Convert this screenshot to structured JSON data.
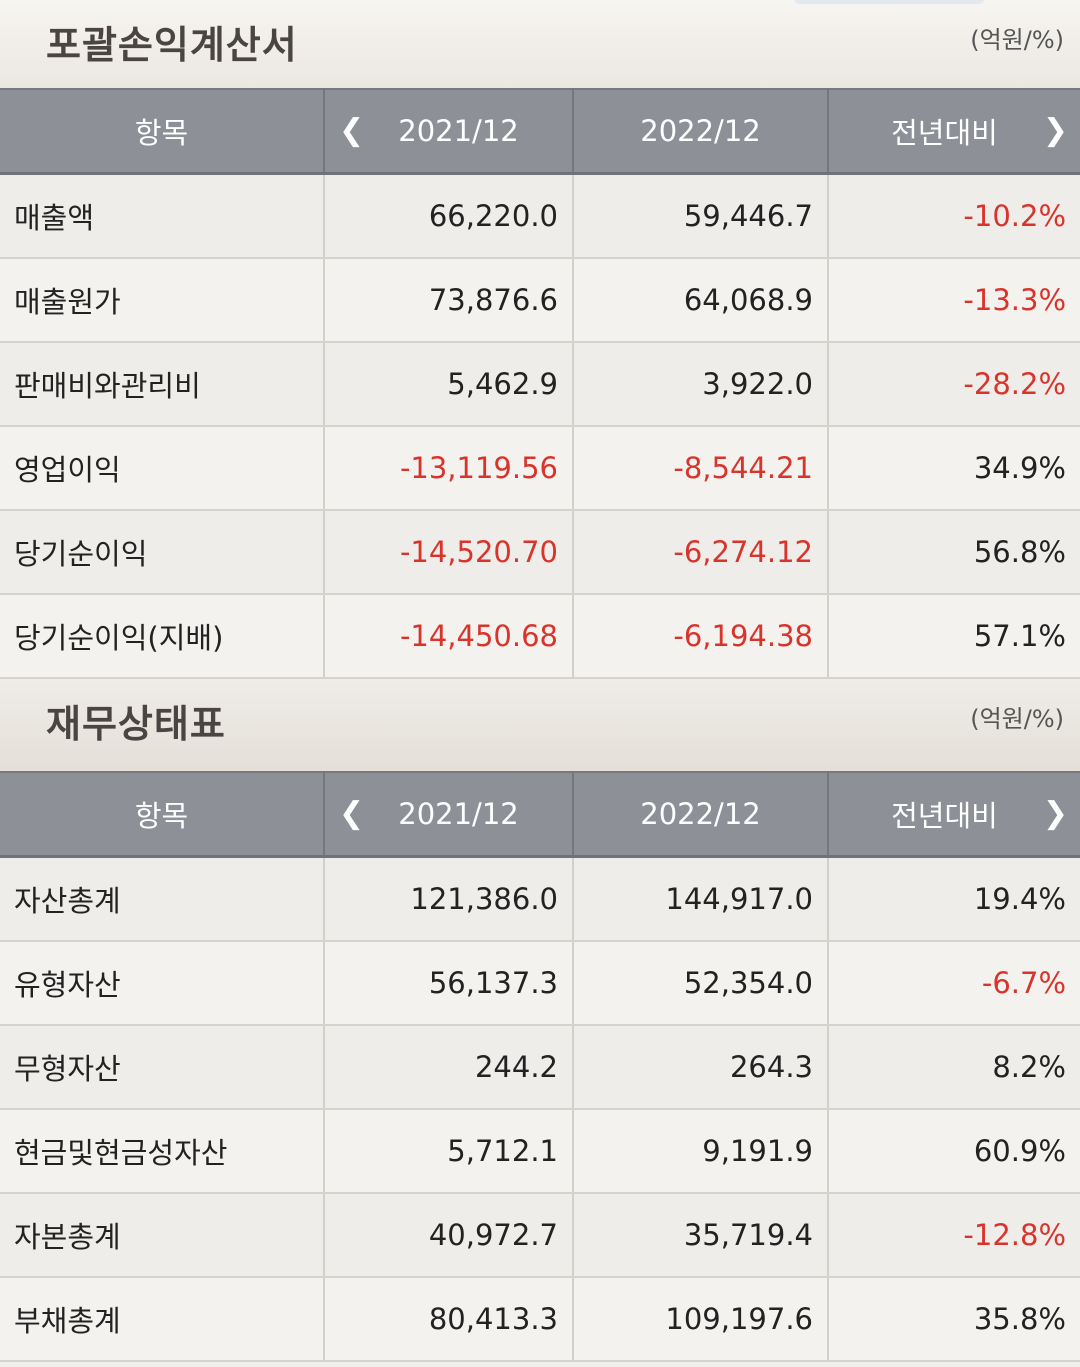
{
  "income": {
    "title": "포괄손익계산서",
    "unit": "(억원/%)",
    "headers": {
      "item": "항목",
      "year1": "2021/12",
      "year2": "2022/12",
      "yoy": "전년대비"
    },
    "rows": [
      {
        "name": "매출액",
        "y1": "66,220.0",
        "y2": "59,446.7",
        "yoy": "-10.2%"
      },
      {
        "name": "매출원가",
        "y1": "73,876.6",
        "y2": "64,068.9",
        "yoy": "-13.3%"
      },
      {
        "name": "판매비와관리비",
        "y1": "5,462.9",
        "y2": "3,922.0",
        "yoy": "-28.2%"
      },
      {
        "name": "영업이익",
        "y1": "-13,119.56",
        "y2": "-8,544.21",
        "yoy": "34.9%"
      },
      {
        "name": "당기순이익",
        "y1": "-14,520.70",
        "y2": "-6,274.12",
        "yoy": "56.8%"
      },
      {
        "name": "당기순이익(지배)",
        "y1": "-14,450.68",
        "y2": "-6,194.38",
        "yoy": "57.1%"
      }
    ]
  },
  "balance": {
    "title": "재무상태표",
    "unit": "(억원/%)",
    "headers": {
      "item": "항목",
      "year1": "2021/12",
      "year2": "2022/12",
      "yoy": "전년대비"
    },
    "rows": [
      {
        "name": "자산총계",
        "y1": "121,386.0",
        "y2": "144,917.0",
        "yoy": "19.4%"
      },
      {
        "name": "유형자산",
        "y1": "56,137.3",
        "y2": "52,354.0",
        "yoy": "-6.7%"
      },
      {
        "name": "무형자산",
        "y1": "244.2",
        "y2": "264.3",
        "yoy": "8.2%"
      },
      {
        "name": "현금및현금성자산",
        "y1": "5,712.1",
        "y2": "9,191.9",
        "yoy": "60.9%"
      },
      {
        "name": "자본총계",
        "y1": "40,972.7",
        "y2": "35,719.4",
        "yoy": "-12.8%"
      },
      {
        "name": "부채총계",
        "y1": "80,413.3",
        "y2": "109,197.6",
        "yoy": "35.8%"
      }
    ]
  },
  "colors": {
    "negative": "#d8342b",
    "header_bg": "#8d9096",
    "text": "#222222"
  },
  "icons": {
    "prev": "chevron-left-icon",
    "next": "chevron-right-icon"
  }
}
